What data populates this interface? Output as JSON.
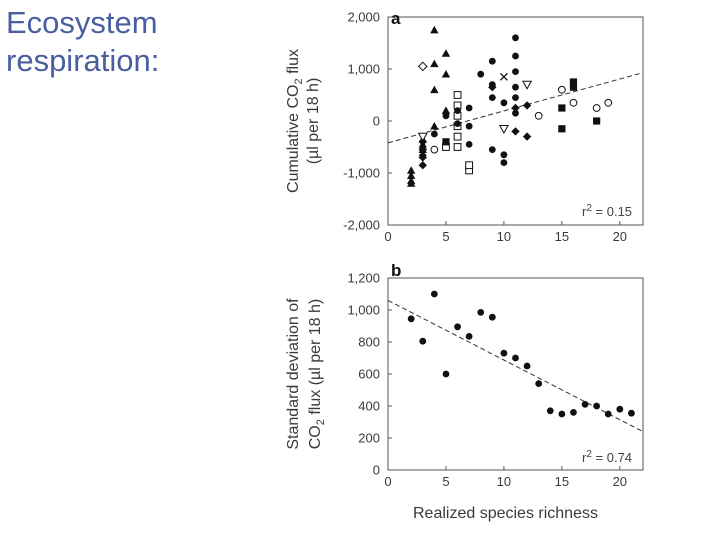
{
  "slide": {
    "title_line1": "Ecosystem",
    "title_line2": "respiration:"
  },
  "chart_data": [
    {
      "panel": "a",
      "type": "scatter",
      "ylabel": "Cumulative CO2 flux (µl per 18 h)",
      "xlabel": "",
      "xlim": [
        0,
        22
      ],
      "ylim": [
        -2000,
        2000
      ],
      "xticks": [
        "0",
        "5",
        "10",
        "15",
        "20"
      ],
      "yticks": [
        "2,000",
        "1,000",
        "0",
        "-1,000",
        "-2,000"
      ],
      "ytick_values": [
        2000,
        1000,
        0,
        -1000,
        -2000
      ],
      "xtick_values": [
        0,
        5,
        10,
        15,
        20
      ],
      "r2_label": "r² = 0.15",
      "fit": {
        "x": [
          0,
          22
        ],
        "y": [
          -420,
          930
        ]
      },
      "points": [
        {
          "x": 2,
          "y": -1150,
          "m": "tri-fill"
        },
        {
          "x": 2,
          "y": -1050,
          "m": "tri-fill"
        },
        {
          "x": 2,
          "y": -950,
          "m": "tri-fill"
        },
        {
          "x": 2,
          "y": -1200,
          "m": "tri-fill"
        },
        {
          "x": 3,
          "y": -350,
          "m": "tri-fill"
        },
        {
          "x": 3,
          "y": -450,
          "m": "tri-fill"
        },
        {
          "x": 3,
          "y": -550,
          "m": "tri-fill"
        },
        {
          "x": 3,
          "y": -650,
          "m": "tri-fill"
        },
        {
          "x": 3,
          "y": -850,
          "m": "diamond-fill"
        },
        {
          "x": 3,
          "y": -700,
          "m": "diamond-fill"
        },
        {
          "x": 3,
          "y": -550,
          "m": "diamond-fill"
        },
        {
          "x": 3,
          "y": -400,
          "m": "diamond-fill"
        },
        {
          "x": 3,
          "y": 1050,
          "m": "diamond-open"
        },
        {
          "x": 3,
          "y": -600,
          "m": "cross"
        },
        {
          "x": 3,
          "y": -300,
          "m": "tri-open"
        },
        {
          "x": 4,
          "y": 1750,
          "m": "tri-fill"
        },
        {
          "x": 4,
          "y": 1100,
          "m": "tri-fill"
        },
        {
          "x": 4,
          "y": 600,
          "m": "tri-fill"
        },
        {
          "x": 4,
          "y": -100,
          "m": "tri-fill"
        },
        {
          "x": 4,
          "y": -550,
          "m": "circle-open"
        },
        {
          "x": 4,
          "y": -250,
          "m": "circle-fill"
        },
        {
          "x": 5,
          "y": 1300,
          "m": "tri-fill"
        },
        {
          "x": 5,
          "y": 900,
          "m": "tri-fill"
        },
        {
          "x": 5,
          "y": 200,
          "m": "tri-fill"
        },
        {
          "x": 5,
          "y": 100,
          "m": "circle-fill"
        },
        {
          "x": 5,
          "y": -500,
          "m": "square-open"
        },
        {
          "x": 5,
          "y": -400,
          "m": "square-fill"
        },
        {
          "x": 6,
          "y": 500,
          "m": "square-open"
        },
        {
          "x": 6,
          "y": 300,
          "m": "square-open"
        },
        {
          "x": 6,
          "y": 100,
          "m": "square-open"
        },
        {
          "x": 6,
          "y": -100,
          "m": "square-open"
        },
        {
          "x": 6,
          "y": -300,
          "m": "square-open"
        },
        {
          "x": 6,
          "y": -500,
          "m": "square-open"
        },
        {
          "x": 6,
          "y": -50,
          "m": "circle-fill"
        },
        {
          "x": 6,
          "y": 200,
          "m": "circle-fill"
        },
        {
          "x": 7,
          "y": 250,
          "m": "circle-fill"
        },
        {
          "x": 7,
          "y": -100,
          "m": "circle-fill"
        },
        {
          "x": 7,
          "y": -450,
          "m": "circle-fill"
        },
        {
          "x": 7,
          "y": -950,
          "m": "square-open"
        },
        {
          "x": 7,
          "y": -850,
          "m": "square-open"
        },
        {
          "x": 8,
          "y": 900,
          "m": "circle-fill"
        },
        {
          "x": 9,
          "y": 1150,
          "m": "circle-fill"
        },
        {
          "x": 9,
          "y": 700,
          "m": "circle-fill"
        },
        {
          "x": 9,
          "y": 450,
          "m": "circle-fill"
        },
        {
          "x": 9,
          "y": -550,
          "m": "circle-fill"
        },
        {
          "x": 9,
          "y": 650,
          "m": "diamond-fill"
        },
        {
          "x": 10,
          "y": 850,
          "m": "cross"
        },
        {
          "x": 10,
          "y": 350,
          "m": "circle-fill"
        },
        {
          "x": 10,
          "y": -650,
          "m": "circle-fill"
        },
        {
          "x": 10,
          "y": -800,
          "m": "circle-fill"
        },
        {
          "x": 10,
          "y": -150,
          "m": "tri-open"
        },
        {
          "x": 11,
          "y": 1600,
          "m": "circle-fill"
        },
        {
          "x": 11,
          "y": 1250,
          "m": "circle-fill"
        },
        {
          "x": 11,
          "y": 950,
          "m": "circle-fill"
        },
        {
          "x": 11,
          "y": 650,
          "m": "circle-fill"
        },
        {
          "x": 11,
          "y": 450,
          "m": "circle-fill"
        },
        {
          "x": 11,
          "y": 150,
          "m": "circle-fill"
        },
        {
          "x": 11,
          "y": -200,
          "m": "diamond-fill"
        },
        {
          "x": 11,
          "y": 250,
          "m": "diamond-fill"
        },
        {
          "x": 12,
          "y": 300,
          "m": "diamond-fill"
        },
        {
          "x": 12,
          "y": -300,
          "m": "diamond-fill"
        },
        {
          "x": 12,
          "y": 700,
          "m": "tri-open"
        },
        {
          "x": 13,
          "y": 100,
          "m": "circle-open"
        },
        {
          "x": 15,
          "y": 600,
          "m": "circle-open"
        },
        {
          "x": 15,
          "y": 250,
          "m": "square-fill"
        },
        {
          "x": 15,
          "y": -150,
          "m": "square-fill"
        },
        {
          "x": 16,
          "y": 750,
          "m": "square-fill"
        },
        {
          "x": 16,
          "y": 650,
          "m": "square-fill"
        },
        {
          "x": 16,
          "y": 350,
          "m": "circle-open"
        },
        {
          "x": 18,
          "y": 250,
          "m": "circle-open"
        },
        {
          "x": 18,
          "y": 0,
          "m": "square-fill"
        },
        {
          "x": 19,
          "y": 350,
          "m": "circle-open"
        }
      ]
    },
    {
      "panel": "b",
      "type": "scatter",
      "ylabel": "Standard deviation of CO2 flux (µl per 18 h)",
      "xlabel": "Realized species richness",
      "xlim": [
        0,
        22
      ],
      "ylim": [
        0,
        1200
      ],
      "xticks": [
        "0",
        "5",
        "10",
        "15",
        "20"
      ],
      "yticks": [
        "1,200",
        "1,000",
        "800",
        "600",
        "400",
        "200",
        "0"
      ],
      "ytick_values": [
        1200,
        1000,
        800,
        600,
        400,
        200,
        0
      ],
      "xtick_values": [
        0,
        5,
        10,
        15,
        20
      ],
      "r2_label": "r² = 0.74",
      "fit": {
        "x": [
          0,
          22
        ],
        "y": [
          1060,
          240
        ]
      },
      "points": [
        {
          "x": 2,
          "y": 945
        },
        {
          "x": 3,
          "y": 805
        },
        {
          "x": 4,
          "y": 1100
        },
        {
          "x": 5,
          "y": 600
        },
        {
          "x": 6,
          "y": 895
        },
        {
          "x": 7,
          "y": 835
        },
        {
          "x": 8,
          "y": 985
        },
        {
          "x": 9,
          "y": 955
        },
        {
          "x": 10,
          "y": 730
        },
        {
          "x": 11,
          "y": 700
        },
        {
          "x": 12,
          "y": 650
        },
        {
          "x": 13,
          "y": 540
        },
        {
          "x": 14,
          "y": 370
        },
        {
          "x": 15,
          "y": 350
        },
        {
          "x": 16,
          "y": 360
        },
        {
          "x": 17,
          "y": 410
        },
        {
          "x": 18,
          "y": 400
        },
        {
          "x": 19,
          "y": 350
        },
        {
          "x": 20,
          "y": 380
        },
        {
          "x": 21,
          "y": 355
        }
      ]
    }
  ]
}
